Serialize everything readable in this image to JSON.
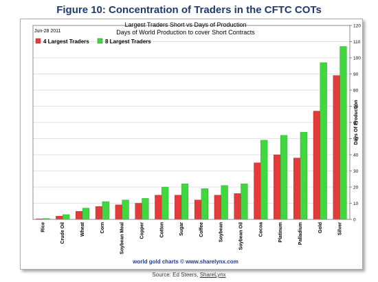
{
  "figure_title": "Figure 10: Concentration of Traders in the CFTC COTs",
  "source_prefix": "Source: Ed Steers, ",
  "source_link": "ShareLynx",
  "colors": {
    "series1": "#e33a3a",
    "series2": "#3fd93f",
    "title": "#1f3a6e",
    "footer": "#1f3a8e"
  },
  "chart_data": {
    "type": "bar",
    "title": "Largest Traders Short vs Days of Production",
    "subtitle": "Days of World Production to cover Short Contracts",
    "date_label": "Jun-28 2011",
    "ylabel": "Days Of Production",
    "footer": "world gold charts © www.sharelynx.com",
    "ylim": [
      0,
      120
    ],
    "yticks": [
      0,
      10,
      20,
      30,
      40,
      50,
      60,
      70,
      80,
      90,
      100,
      110,
      120
    ],
    "y_axis_side": "right",
    "grid": true,
    "legend_position": "top-left",
    "categories": [
      "Rice",
      "Crude Oil",
      "Wheat",
      "Corn",
      "Soybean Meal",
      "Copper",
      "Cotton",
      "Sugar",
      "Coffee",
      "Soybean",
      "Soybean Oil",
      "Cocoa",
      "Platinum",
      "Palladium",
      "Gold",
      "Silver"
    ],
    "series": [
      {
        "name": "4 Largest Traders",
        "values": [
          0.4,
          2,
          5,
          8,
          9,
          10,
          15,
          15,
          12,
          15,
          16,
          35,
          40,
          38,
          67,
          89
        ]
      },
      {
        "name": "8 Largest Traders",
        "values": [
          0.6,
          3,
          7,
          11,
          12,
          13,
          20,
          22,
          19,
          21,
          22,
          49,
          52,
          54,
          97,
          107
        ]
      }
    ]
  }
}
